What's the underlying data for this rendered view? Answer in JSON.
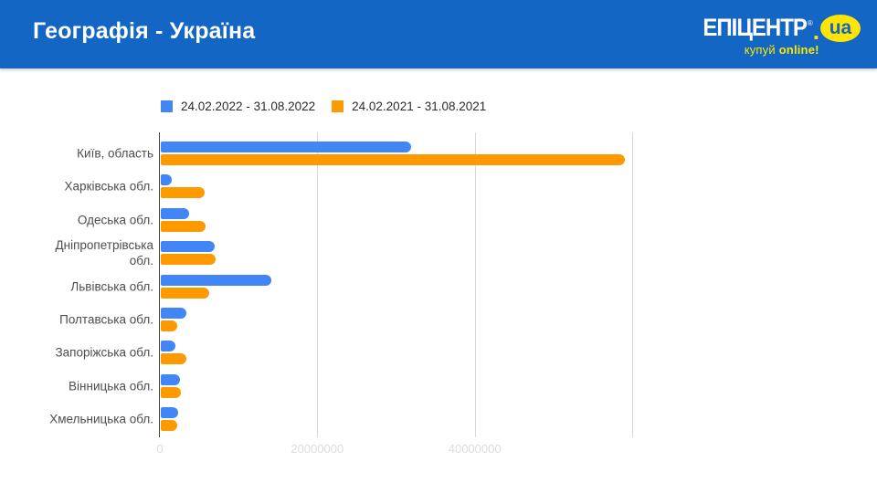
{
  "header": {
    "title": "Географія - Україна",
    "logo": {
      "brand": "ЕПІЦЕНТР",
      "reg": "®",
      "dot": ".",
      "tld": "ua",
      "tagline_plain": "купуй",
      "tagline_bold": "online!"
    }
  },
  "colors": {
    "header_bg": "#1366C4",
    "logo_yellow": "#FFE500",
    "series_2022_blue": "#4285F4",
    "series_2021_orange": "#FF9900",
    "gridline": "#D9D9D9",
    "axis_baseline": "#424242",
    "x_tick_label": "#DCDCDC",
    "category_label": "#4D4D4D",
    "legend_text": "#2B2B2B"
  },
  "chart_data": {
    "type": "bar",
    "orientation": "horizontal",
    "title": "",
    "xlabel": "",
    "ylabel": "",
    "legend_position": "top",
    "grid": true,
    "categories": [
      "Київ, область",
      "Харківська обл.",
      "Одеська обл.",
      "Дніпропетрівська обл.",
      "Львівська обл.",
      "Полтавська обл.",
      "Запоріжська обл.",
      "Вінницька обл.",
      "Хмельницька обл."
    ],
    "series": [
      {
        "name": "24.02.2022 - 31.08.2022",
        "color": "#4285F4",
        "values": [
          31800000,
          1400000,
          3600000,
          6900000,
          14000000,
          3300000,
          1900000,
          2400000,
          2200000
        ]
      },
      {
        "name": "24.02.2021 - 31.08.2021",
        "color": "#FF9900",
        "values": [
          59000000,
          5600000,
          5700000,
          7000000,
          6100000,
          2100000,
          3300000,
          2500000,
          2100000
        ]
      }
    ],
    "xlim": [
      0,
      60000000
    ],
    "x_tick_values": [
      0,
      20000000,
      40000000
    ],
    "x_tick_labels": [
      "0",
      "20000000",
      "40000000"
    ],
    "gridline_values": [
      0,
      20000000,
      40000000,
      60000000
    ]
  }
}
